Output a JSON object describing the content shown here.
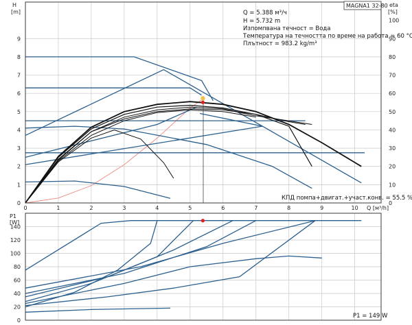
{
  "chart_data": [
    {
      "type": "line",
      "title": "MAGNA1 32-80",
      "x_unit_label": "Q [м³/h]",
      "xlabel": "Q",
      "x_unit": "[м³/h]",
      "xlim": [
        0,
        10.8
      ],
      "xticks": [
        0,
        1,
        2,
        3,
        4,
        5,
        6,
        7,
        8,
        9,
        10
      ],
      "ylabel": "H",
      "y_unit": "[m]",
      "ylim": [
        0,
        11
      ],
      "yticks": [
        0,
        1,
        2,
        3,
        4,
        5,
        6,
        7,
        8,
        9
      ],
      "y2label": "eta",
      "y2_unit": "[%]",
      "y2lim": [
        0,
        110
      ],
      "y2ticks": [
        0,
        10,
        20,
        30,
        40,
        50,
        60,
        70,
        80,
        90,
        100
      ],
      "info_lines": [
        "Q = 5.388 м³/ч",
        "H = 5.732 m",
        "Изпомпвана течност = Вода",
        "Температура на течността по време на работа = 60 °C",
        "Плътност = 983.2 kg/m³"
      ],
      "efficiency_note": "КПД помпа+двигат.+участ.конв. = 55.5 %",
      "operating_point": {
        "Q": 5.388,
        "H": 5.732
      },
      "duty_line_x": 5.4,
      "pump_curves": [
        {
          "name": "",
          "color": "#2b5f8e",
          "points": [
            [
              0,
              8.0
            ],
            [
              3.3,
              8.0
            ],
            [
              5.35,
              6.7
            ],
            [
              5.7,
              5.6
            ]
          ]
        },
        {
          "name": "",
          "color": "#2b5f8e",
          "points": [
            [
              0,
              6.3
            ],
            [
              5.0,
              6.3
            ],
            [
              5.35,
              5.9
            ]
          ]
        },
        {
          "name": "",
          "color": "#2b5f8e",
          "points": [
            [
              0,
              3.7
            ],
            [
              4.2,
              7.3
            ],
            [
              10.2,
              1.1
            ]
          ]
        },
        {
          "name": "",
          "color": "#2b5f8e",
          "points": [
            [
              0,
              4.1
            ],
            [
              1.5,
              4.2
            ],
            [
              3.0,
              4.05
            ],
            [
              5.5,
              3.2
            ],
            [
              7.5,
              2.0
            ],
            [
              8.7,
              0.8
            ]
          ]
        },
        {
          "name": "",
          "color": "#2b5f8e",
          "points": [
            [
              0,
              2.75
            ],
            [
              10.3,
              2.75
            ]
          ]
        },
        {
          "name": "",
          "color": "#2b5f8e",
          "points": [
            [
              0,
              2.1
            ],
            [
              7.2,
              4.2
            ],
            [
              5.3,
              4.9
            ]
          ]
        },
        {
          "name": "",
          "color": "#2b5f8e",
          "points": [
            [
              0,
              1.15
            ],
            [
              1.5,
              1.2
            ],
            [
              3.0,
              0.9
            ],
            [
              4.4,
              0.25
            ]
          ]
        },
        {
          "name": "",
          "color": "#2b5f8e",
          "points": [
            [
              0,
              4.5
            ],
            [
              8.5,
              4.5
            ]
          ]
        },
        {
          "name": "",
          "color": "#2b5f8e",
          "points": [
            [
              0,
              2.5
            ],
            [
              4.0,
              4.3
            ],
            [
              5.2,
              5.25
            ]
          ]
        }
      ],
      "efficiency_curves": [
        {
          "name": "",
          "color": "#111111",
          "width": 1.8,
          "points": [
            [
              0,
              0
            ],
            [
              1,
              2.55
            ],
            [
              2,
              4.15
            ],
            [
              3,
              5.0
            ],
            [
              4,
              5.4
            ],
            [
              5,
              5.55
            ],
            [
              6,
              5.4
            ],
            [
              7,
              5.0
            ],
            [
              8,
              4.3
            ],
            [
              9,
              3.3
            ],
            [
              10.2,
              2.0
            ]
          ]
        },
        {
          "name": "",
          "color": "#111111",
          "width": 1.2,
          "points": [
            [
              0,
              0
            ],
            [
              1,
              2.5
            ],
            [
              2,
              4.05
            ],
            [
              3,
              4.85
            ],
            [
              4,
              5.25
            ],
            [
              5,
              5.35
            ],
            [
              6,
              5.2
            ],
            [
              7,
              4.85
            ],
            [
              8,
              4.2
            ],
            [
              8.7,
              2.0
            ]
          ]
        },
        {
          "name": "",
          "color": "#111111",
          "width": 1.0,
          "points": [
            [
              0,
              0
            ],
            [
              1,
              2.4
            ],
            [
              2,
              3.9
            ],
            [
              3,
              4.7
            ],
            [
              4,
              5.1
            ],
            [
              5,
              5.25
            ],
            [
              6,
              5.15
            ],
            [
              6.9,
              4.8
            ],
            [
              8.7,
              4.3
            ]
          ]
        },
        {
          "name": "",
          "color": "#111111",
          "width": 1.0,
          "points": [
            [
              0,
              0
            ],
            [
              1,
              2.3
            ],
            [
              2,
              3.7
            ],
            [
              3,
              4.5
            ],
            [
              4,
              4.95
            ],
            [
              5,
              5.1
            ],
            [
              6,
              5.0
            ],
            [
              7,
              4.7
            ]
          ]
        },
        {
          "name": "",
          "color": "#111111",
          "width": 1.0,
          "points": [
            [
              0,
              0
            ],
            [
              1,
              2.35
            ],
            [
              2,
              3.9
            ],
            [
              3,
              4.6
            ],
            [
              4,
              5.0
            ],
            [
              5,
              5.15
            ],
            [
              6,
              5.1
            ],
            [
              7,
              4.85
            ],
            [
              8,
              4.45
            ],
            [
              8.5,
              4.3
            ]
          ]
        },
        {
          "name": "",
          "color": "#111111",
          "width": 1.0,
          "points": [
            [
              0,
              0
            ],
            [
              1,
              2.25
            ],
            [
              2,
              3.55
            ],
            [
              2.7,
              4.0
            ],
            [
              3.5,
              3.5
            ],
            [
              4.2,
              2.2
            ],
            [
              4.5,
              1.35
            ]
          ]
        }
      ],
      "system_curve": {
        "name": "",
        "color": "#f08a80",
        "points": [
          [
            0,
            0
          ],
          [
            1,
            0.27
          ],
          [
            2,
            0.95
          ],
          [
            3,
            2.1
          ],
          [
            4,
            3.55
          ],
          [
            5,
            5.2
          ],
          [
            5.4,
            5.7
          ]
        ]
      }
    },
    {
      "type": "line",
      "ylabel": "P1",
      "y_unit": "[W]",
      "ylim": [
        0,
        160
      ],
      "yticks": [
        0,
        20,
        40,
        60,
        80,
        100,
        120,
        140
      ],
      "xlim": [
        0,
        10.8
      ],
      "power_note": "P1 = 149 W",
      "operating_point": {
        "Q": 5.388,
        "P1": 149
      },
      "power_curves": [
        {
          "name": "",
          "color": "#2b5f8e",
          "points": [
            [
              0,
              75
            ],
            [
              2.3,
              145
            ],
            [
              3.2,
              149
            ],
            [
              10.2,
              149
            ]
          ]
        },
        {
          "name": "",
          "color": "#2b5f8e",
          "points": [
            [
              0,
              20
            ],
            [
              1.5,
              42
            ],
            [
              2.8,
              75
            ],
            [
              3.8,
              115
            ],
            [
              4.0,
              149
            ]
          ]
        },
        {
          "name": "",
          "color": "#2b5f8e",
          "points": [
            [
              0,
              28
            ],
            [
              2.0,
              55
            ],
            [
              4.0,
              95
            ],
            [
              5.1,
              149
            ]
          ]
        },
        {
          "name": "",
          "color": "#2b5f8e",
          "points": [
            [
              0,
              35
            ],
            [
              2.5,
              65
            ],
            [
              4.5,
              105
            ],
            [
              6.3,
              149
            ]
          ]
        },
        {
          "name": "",
          "color": "#2b5f8e",
          "points": [
            [
              0,
              40
            ],
            [
              3.0,
              70
            ],
            [
              5.5,
              110
            ],
            [
              7.0,
              149
            ]
          ]
        },
        {
          "name": "",
          "color": "#2b5f8e",
          "points": [
            [
              0,
              48
            ],
            [
              3.5,
              80
            ],
            [
              6.0,
              115
            ],
            [
              8.8,
              149
            ]
          ]
        },
        {
          "name": "",
          "color": "#2b5f8e",
          "points": [
            [
              0,
              25
            ],
            [
              3.0,
              55
            ],
            [
              5.0,
              80
            ],
            [
              7.0,
              92
            ],
            [
              8.0,
              96
            ],
            [
              9.0,
              93
            ]
          ]
        },
        {
          "name": "",
          "color": "#2b5f8e",
          "points": [
            [
              0,
              12
            ],
            [
              2.0,
              16
            ],
            [
              4.4,
              18
            ]
          ]
        },
        {
          "name": "",
          "color": "#2b5f8e",
          "points": [
            [
              0,
              22
            ],
            [
              2.5,
              35
            ],
            [
              4.5,
              48
            ],
            [
              6.5,
              65
            ],
            [
              8.8,
              149
            ]
          ]
        }
      ]
    }
  ],
  "colors": {
    "curve_blue": "#2b5f8e",
    "eff_black": "#111111",
    "system_red": "#f08a80",
    "point_red": "#e02020",
    "point_yellow": "#f2c14e",
    "grid": "#c8c8c8"
  }
}
